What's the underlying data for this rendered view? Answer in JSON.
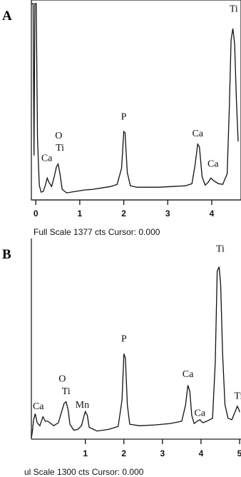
{
  "chart_data": [
    {
      "type": "line",
      "panel_label": "A",
      "footer": "Full Scale 1377 cts Cursor: 0.000",
      "xlim": [
        -0.1,
        4.6
      ],
      "ylim": [
        0,
        1377
      ],
      "x_ticks": [
        0,
        1,
        2,
        3,
        4
      ],
      "tick_labels": [
        "0",
        "1",
        "2",
        "3",
        "4"
      ],
      "annotations": [
        {
          "text": "Ca",
          "x": 0.25,
          "y": 260
        },
        {
          "text": "Ti",
          "x": 0.55,
          "y": 335
        },
        {
          "text": "O",
          "x": 0.52,
          "y": 420
        },
        {
          "text": "P",
          "x": 2.0,
          "y": 555
        },
        {
          "text": "Ca",
          "x": 3.68,
          "y": 435
        },
        {
          "text": "Ca",
          "x": 4.03,
          "y": 220
        },
        {
          "text": "Ti",
          "x": 4.5,
          "y": 1320
        }
      ],
      "points": [
        [
          -0.1,
          1377
        ],
        [
          -0.06,
          1377
        ],
        [
          -0.04,
          300
        ],
        [
          -0.02,
          1377
        ],
        [
          0.0,
          1377
        ],
        [
          0.01,
          1377
        ],
        [
          0.04,
          420
        ],
        [
          0.08,
          90
        ],
        [
          0.12,
          40
        ],
        [
          0.17,
          45
        ],
        [
          0.22,
          90
        ],
        [
          0.26,
          140
        ],
        [
          0.3,
          110
        ],
        [
          0.36,
          80
        ],
        [
          0.42,
          150
        ],
        [
          0.47,
          220
        ],
        [
          0.51,
          240
        ],
        [
          0.55,
          170
        ],
        [
          0.6,
          60
        ],
        [
          0.7,
          35
        ],
        [
          0.9,
          45
        ],
        [
          1.1,
          55
        ],
        [
          1.3,
          60
        ],
        [
          1.5,
          70
        ],
        [
          1.7,
          80
        ],
        [
          1.85,
          95
        ],
        [
          1.95,
          210
        ],
        [
          2.0,
          470
        ],
        [
          2.03,
          460
        ],
        [
          2.08,
          180
        ],
        [
          2.15,
          85
        ],
        [
          2.3,
          75
        ],
        [
          2.5,
          75
        ],
        [
          2.8,
          75
        ],
        [
          3.1,
          80
        ],
        [
          3.4,
          85
        ],
        [
          3.55,
          100
        ],
        [
          3.62,
          230
        ],
        [
          3.68,
          380
        ],
        [
          3.72,
          360
        ],
        [
          3.78,
          150
        ],
        [
          3.85,
          90
        ],
        [
          3.92,
          110
        ],
        [
          3.98,
          140
        ],
        [
          4.05,
          120
        ],
        [
          4.15,
          100
        ],
        [
          4.25,
          95
        ],
        [
          4.35,
          170
        ],
        [
          4.4,
          650
        ],
        [
          4.44,
          1120
        ],
        [
          4.48,
          1200
        ],
        [
          4.52,
          1090
        ],
        [
          4.56,
          700
        ],
        [
          4.6,
          400
        ]
      ]
    },
    {
      "type": "line",
      "panel_label": "B",
      "footer": "ul Scale 1300 cts Cursor: 0.000",
      "xlim": [
        -0.4,
        5.0
      ],
      "ylim": [
        0,
        1300
      ],
      "x_ticks": [
        1,
        2,
        3,
        4,
        5
      ],
      "tick_labels": [
        "1",
        "2",
        "3",
        "4",
        "5"
      ],
      "annotations": [
        {
          "text": "Ca",
          "x": -0.22,
          "y": 190
        },
        {
          "text": "Ti",
          "x": 0.5,
          "y": 290
        },
        {
          "text": "O",
          "x": 0.4,
          "y": 375
        },
        {
          "text": "Mn",
          "x": 0.92,
          "y": 200
        },
        {
          "text": "P",
          "x": 2.0,
          "y": 640
        },
        {
          "text": "Ca",
          "x": 3.66,
          "y": 405
        },
        {
          "text": "Ca",
          "x": 3.97,
          "y": 145
        },
        {
          "text": "Ti",
          "x": 4.5,
          "y": 1240
        },
        {
          "text": "Ti",
          "x": 4.97,
          "y": 260
        }
      ],
      "points": [
        [
          -0.4,
          0
        ],
        [
          -0.38,
          30
        ],
        [
          -0.34,
          120
        ],
        [
          -0.3,
          160
        ],
        [
          -0.25,
          100
        ],
        [
          -0.18,
          80
        ],
        [
          -0.1,
          140
        ],
        [
          -0.04,
          110
        ],
        [
          0.02,
          110
        ],
        [
          0.08,
          100
        ],
        [
          0.18,
          80
        ],
        [
          0.3,
          100
        ],
        [
          0.38,
          170
        ],
        [
          0.45,
          230
        ],
        [
          0.5,
          240
        ],
        [
          0.55,
          190
        ],
        [
          0.6,
          90
        ],
        [
          0.7,
          50
        ],
        [
          0.8,
          55
        ],
        [
          0.9,
          80
        ],
        [
          0.97,
          150
        ],
        [
          1.0,
          175
        ],
        [
          1.05,
          150
        ],
        [
          1.1,
          70
        ],
        [
          1.3,
          45
        ],
        [
          1.6,
          55
        ],
        [
          1.85,
          75
        ],
        [
          1.95,
          250
        ],
        [
          2.0,
          560
        ],
        [
          2.04,
          530
        ],
        [
          2.09,
          220
        ],
        [
          2.15,
          90
        ],
        [
          2.4,
          80
        ],
        [
          2.8,
          85
        ],
        [
          3.2,
          95
        ],
        [
          3.5,
          110
        ],
        [
          3.6,
          220
        ],
        [
          3.66,
          350
        ],
        [
          3.71,
          310
        ],
        [
          3.76,
          150
        ],
        [
          3.82,
          95
        ],
        [
          3.9,
          110
        ],
        [
          3.97,
          120
        ],
        [
          4.05,
          100
        ],
        [
          4.15,
          110
        ],
        [
          4.3,
          130
        ],
        [
          4.37,
          500
        ],
        [
          4.42,
          1110
        ],
        [
          4.47,
          1140
        ],
        [
          4.51,
          1020
        ],
        [
          4.56,
          560
        ],
        [
          4.62,
          220
        ],
        [
          4.7,
          130
        ],
        [
          4.8,
          120
        ],
        [
          4.88,
          170
        ],
        [
          4.94,
          210
        ],
        [
          4.98,
          190
        ],
        [
          5.0,
          170
        ]
      ]
    }
  ]
}
